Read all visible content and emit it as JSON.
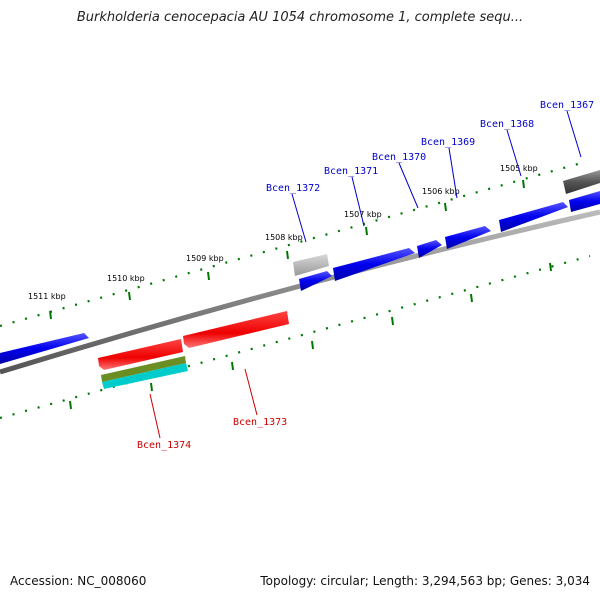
{
  "title": "Burkholderia cenocepacia AU 1054 chromosome 1, complete sequ...",
  "footer": {
    "accession": "Accession: NC_008060",
    "summary": "Topology: circular; Length: 3,294,563 bp; Genes: 3,034"
  },
  "colors": {
    "forward_gene": "#0000ee",
    "reverse_gene": "#ee0000",
    "hypothetical_gene": "#555555",
    "rna_gene": "#aaaaaa",
    "olive_feature": "#6b8e23",
    "cyan_feature": "#00cccc",
    "backbone": "#888888",
    "tick": "#007700",
    "label_forward": "#0000cc",
    "label_reverse": "#cc0000"
  },
  "kbp_ticks": [
    "1505 kbp",
    "1506 kbp",
    "1507 kbp",
    "1508 kbp",
    "1509 kbp",
    "1510 kbp",
    "1511 kbp"
  ],
  "gene_labels": {
    "forward": [
      "Bcen_1367",
      "Bcen_1368",
      "Bcen_1369",
      "Bcen_1370",
      "Bcen_1371",
      "Bcen_1372"
    ],
    "reverse": [
      "Bcen_1373",
      "Bcen_1374"
    ]
  }
}
